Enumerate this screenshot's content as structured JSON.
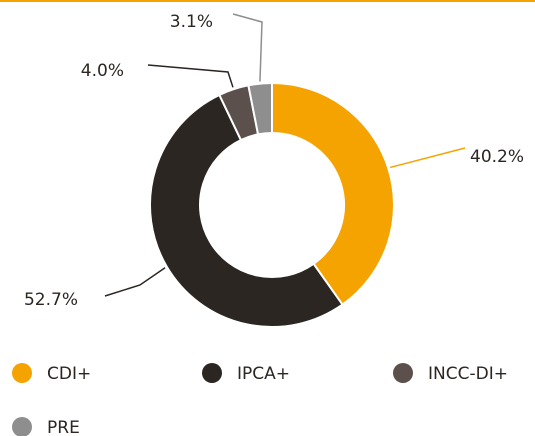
{
  "chart_data": {
    "type": "donut",
    "categories": [
      "CDI+",
      "IPCA+",
      "INCC-DI+",
      "PRE"
    ],
    "values": [
      40.2,
      52.7,
      4.0,
      3.1
    ],
    "value_labels": [
      "40.2%",
      "52.7%",
      "4.0%",
      "3.1%"
    ],
    "colors": [
      "#f5a300",
      "#2b2622",
      "#5b504b",
      "#8e8e8e"
    ],
    "legend": "bottom"
  }
}
